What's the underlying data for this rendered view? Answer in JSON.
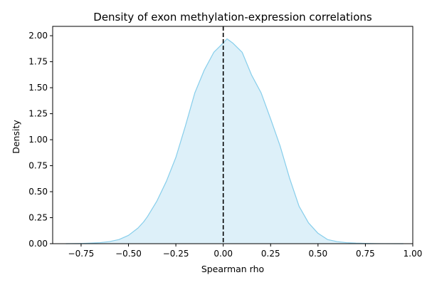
{
  "chart_data": {
    "type": "area",
    "title": "Density of exon methylation-expression correlations",
    "xlabel": "Spearman rho",
    "ylabel": "Density",
    "xlim": [
      -0.9,
      1.0
    ],
    "ylim": [
      0.0,
      2.09
    ],
    "xticks": [
      -0.75,
      -0.5,
      -0.25,
      0.0,
      0.25,
      0.5,
      0.75,
      1.0
    ],
    "xtick_labels": [
      "−0.75",
      "−0.50",
      "−0.25",
      "0.00",
      "0.25",
      "0.50",
      "0.75",
      "1.00"
    ],
    "yticks": [
      0.0,
      0.25,
      0.5,
      0.75,
      1.0,
      1.25,
      1.5,
      1.75,
      2.0
    ],
    "ytick_labels": [
      "0.00",
      "0.25",
      "0.50",
      "0.75",
      "1.00",
      "1.25",
      "1.50",
      "1.75",
      "2.00"
    ],
    "grid": false,
    "reference_line": {
      "x": 0.0,
      "style": "dashed",
      "color": "#000000"
    },
    "series": [
      {
        "name": "density",
        "fill_color": "#ddf0f9",
        "line_color": "#87ceeb",
        "x": [
          -0.83,
          -0.75,
          -0.7,
          -0.65,
          -0.6,
          -0.55,
          -0.5,
          -0.45,
          -0.42,
          -0.4,
          -0.35,
          -0.3,
          -0.25,
          -0.2,
          -0.15,
          -0.1,
          -0.05,
          0.0,
          0.02,
          0.05,
          0.1,
          0.15,
          0.2,
          0.25,
          0.3,
          0.35,
          0.4,
          0.45,
          0.5,
          0.55,
          0.6,
          0.65,
          0.7,
          0.75,
          0.8,
          0.85,
          0.95
        ],
        "y": [
          0.0,
          0.002,
          0.005,
          0.01,
          0.02,
          0.04,
          0.08,
          0.15,
          0.21,
          0.26,
          0.41,
          0.6,
          0.83,
          1.13,
          1.45,
          1.67,
          1.84,
          1.93,
          1.97,
          1.93,
          1.84,
          1.62,
          1.45,
          1.2,
          0.94,
          0.63,
          0.36,
          0.2,
          0.1,
          0.04,
          0.02,
          0.01,
          0.005,
          0.003,
          0.001,
          0.0005,
          0.0
        ]
      }
    ]
  }
}
